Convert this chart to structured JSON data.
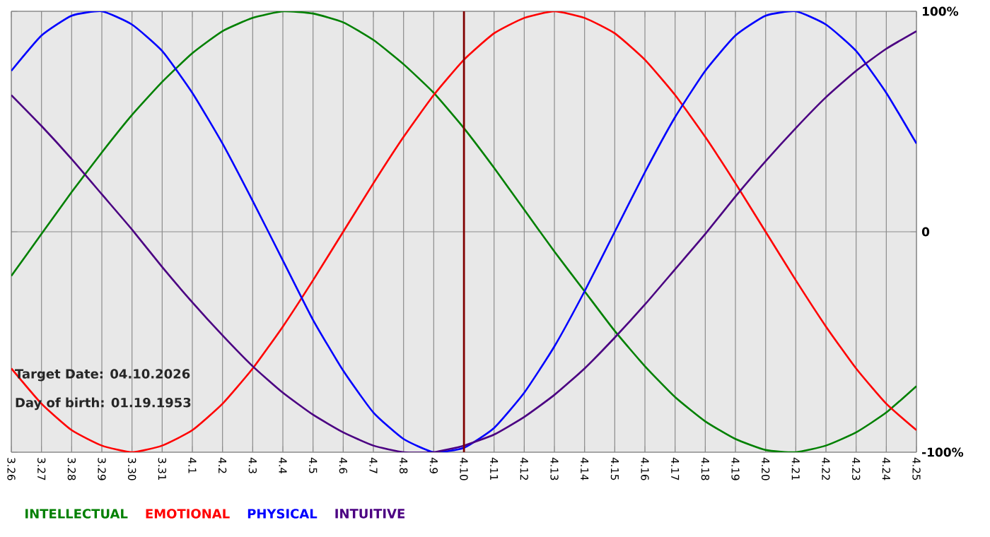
{
  "chart_data": {
    "type": "line",
    "categories": [
      "3.26",
      "3.27",
      "3.28",
      "3.29",
      "3.30",
      "3.31",
      "4.1",
      "4.2",
      "4.3",
      "4.4",
      "4.5",
      "4.6",
      "4.7",
      "4.8",
      "4.9",
      "4.10",
      "4.11",
      "4.12",
      "4.13",
      "4.14",
      "4.15",
      "4.16",
      "4.17",
      "4.18",
      "4.19",
      "4.20",
      "4.21",
      "4.22",
      "4.23",
      "4.24",
      "4.25"
    ],
    "series": [
      {
        "name": "INTELLECTUAL",
        "color": "#008000",
        "values": [
          -20,
          -1,
          18,
          36,
          53,
          68,
          81,
          91,
          97,
          100,
          99,
          95,
          87,
          76,
          63,
          47,
          29,
          10,
          -9,
          -27,
          -45,
          -61,
          -75,
          -86,
          -94,
          -99,
          -100,
          -97,
          -91,
          -82,
          -70
        ]
      },
      {
        "name": "EMOTIONAL",
        "color": "#ff0000",
        "values": [
          -62,
          -78,
          -90,
          -97,
          -100,
          -97,
          -90,
          -78,
          -62,
          -43,
          -22,
          0,
          22,
          43,
          62,
          78,
          90,
          97,
          100,
          97,
          90,
          78,
          62,
          43,
          22,
          0,
          -22,
          -43,
          -62,
          -78,
          -90
        ]
      },
      {
        "name": "PHYSICAL",
        "color": "#0000ff",
        "values": [
          73,
          89,
          98,
          100,
          94,
          82,
          63,
          40,
          14,
          -13,
          -40,
          -63,
          -82,
          -94,
          -100,
          -98,
          -89,
          -73,
          -52,
          -27,
          0,
          27,
          52,
          73,
          89,
          98,
          100,
          94,
          82,
          63,
          40
        ]
      },
      {
        "name": "INTUITIVE",
        "color": "#4b0082",
        "values": [
          62,
          48,
          33,
          17,
          1,
          -16,
          -32,
          -47,
          -61,
          -73,
          -83,
          -91,
          -97,
          -100,
          -100,
          -97,
          -92,
          -84,
          -74,
          -62,
          -48,
          -33,
          -17,
          -1,
          16,
          32,
          47,
          61,
          73,
          83,
          91
        ]
      }
    ],
    "ylim": [
      -100,
      100
    ],
    "yticks": [
      {
        "value": -100,
        "label": "-100%"
      },
      0,
      {
        "value": 100,
        "label": "100%"
      }
    ],
    "ref_lines": [
      {
        "axis": "x",
        "value": "4.10",
        "color": "#800000"
      }
    ],
    "annotations": [
      "Target Date: 04.10.2026",
      "Day of birth: 01.19.1953"
    ],
    "grid": true,
    "legend": "bottom",
    "marker": "none",
    "line_style": "solid"
  }
}
